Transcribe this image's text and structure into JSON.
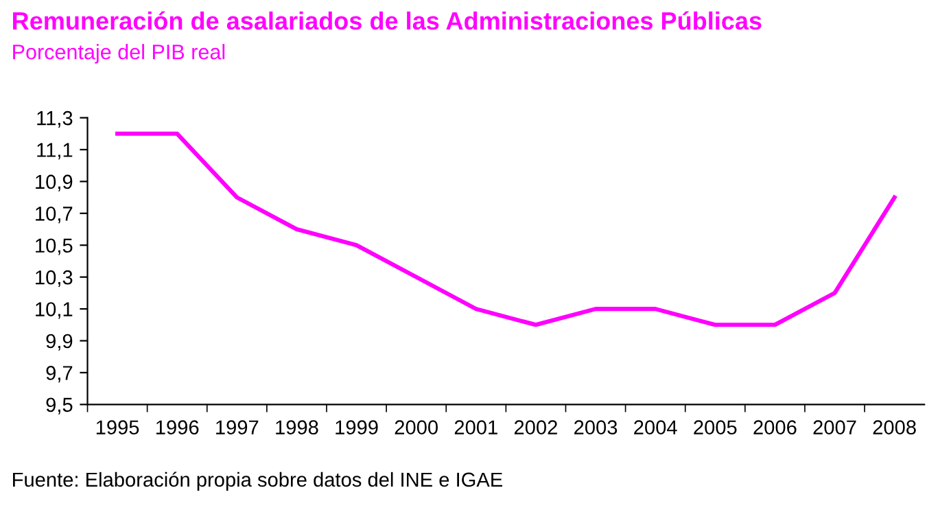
{
  "chart_data": {
    "type": "line",
    "title": "Remuneración de asalariados de las Administraciones Públicas",
    "subtitle": "Porcentaje del PIB real",
    "categories": [
      "1995",
      "1996",
      "1997",
      "1998",
      "1999",
      "2000",
      "2001",
      "2002",
      "2003",
      "2004",
      "2005",
      "2006",
      "2007",
      "2008"
    ],
    "series": [
      {
        "color": "#ff00ff",
        "values": [
          11.2,
          11.2,
          10.8,
          10.6,
          10.5,
          10.3,
          10.1,
          10.0,
          10.1,
          10.1,
          10.0,
          10.0,
          10.2,
          10.8
        ]
      }
    ],
    "ylim": [
      9.5,
      11.3
    ],
    "yticks": [
      {
        "value": 9.5,
        "label": "9,5"
      },
      {
        "value": 9.7,
        "label": "9,7"
      },
      {
        "value": 9.9,
        "label": "9,9"
      },
      {
        "value": 10.1,
        "label": "10,1"
      },
      {
        "value": 10.3,
        "label": "10,3"
      },
      {
        "value": 10.5,
        "label": "10,5"
      },
      {
        "value": 10.7,
        "label": "10,7"
      },
      {
        "value": 10.9,
        "label": "10,9"
      },
      {
        "value": 11.1,
        "label": "11,1"
      },
      {
        "value": 11.3,
        "label": "11,3"
      }
    ],
    "grid": false,
    "legend": false,
    "marker": "none",
    "line_style": "solid",
    "annotations": [
      "Fuente: Elaboración propia sobre datos del INE e IGAE"
    ]
  }
}
